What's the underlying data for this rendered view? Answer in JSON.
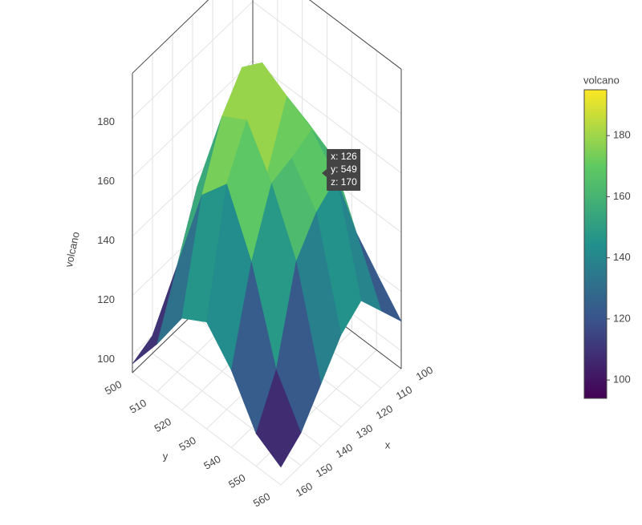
{
  "chart_data": {
    "type": "surface",
    "x_title": "x",
    "y_title": "y",
    "z_title": "volcano",
    "x": [
      100,
      110,
      120,
      130,
      140,
      150,
      160
    ],
    "y": [
      500,
      510,
      520,
      530,
      540,
      550,
      560
    ],
    "z": [
      [
        100,
        105,
        110,
        120,
        130,
        120,
        110
      ],
      [
        105,
        120,
        150,
        165,
        160,
        140,
        120
      ],
      [
        110,
        150,
        185,
        180,
        175,
        165,
        130
      ],
      [
        110,
        160,
        190,
        160,
        172,
        160,
        125
      ],
      [
        105,
        150,
        180,
        185,
        170,
        150,
        115
      ],
      [
        100,
        130,
        160,
        170,
        150,
        120,
        105
      ],
      [
        97,
        110,
        125,
        130,
        120,
        105,
        100
      ]
    ],
    "xlim": [
      100,
      160
    ],
    "ylim": [
      500,
      560
    ],
    "zlim": [
      94,
      195
    ],
    "xticks": [
      100,
      110,
      120,
      130,
      140,
      150,
      160
    ],
    "yticks": [
      500,
      510,
      520,
      530,
      540,
      550,
      560
    ],
    "zticks": [
      100,
      120,
      140,
      160,
      180
    ],
    "colorscale": [
      "#440154",
      "#3b528b",
      "#21918c",
      "#5ec962",
      "#fde725"
    ],
    "colorbar": {
      "title": "volcano",
      "cmin": 94,
      "cmax": 195,
      "ticks": [
        100,
        120,
        140,
        160,
        180
      ]
    },
    "hover": {
      "x": 126,
      "y": 549,
      "z": 170,
      "labels": [
        "x: 126",
        "y: 549",
        "z: 170"
      ]
    }
  }
}
